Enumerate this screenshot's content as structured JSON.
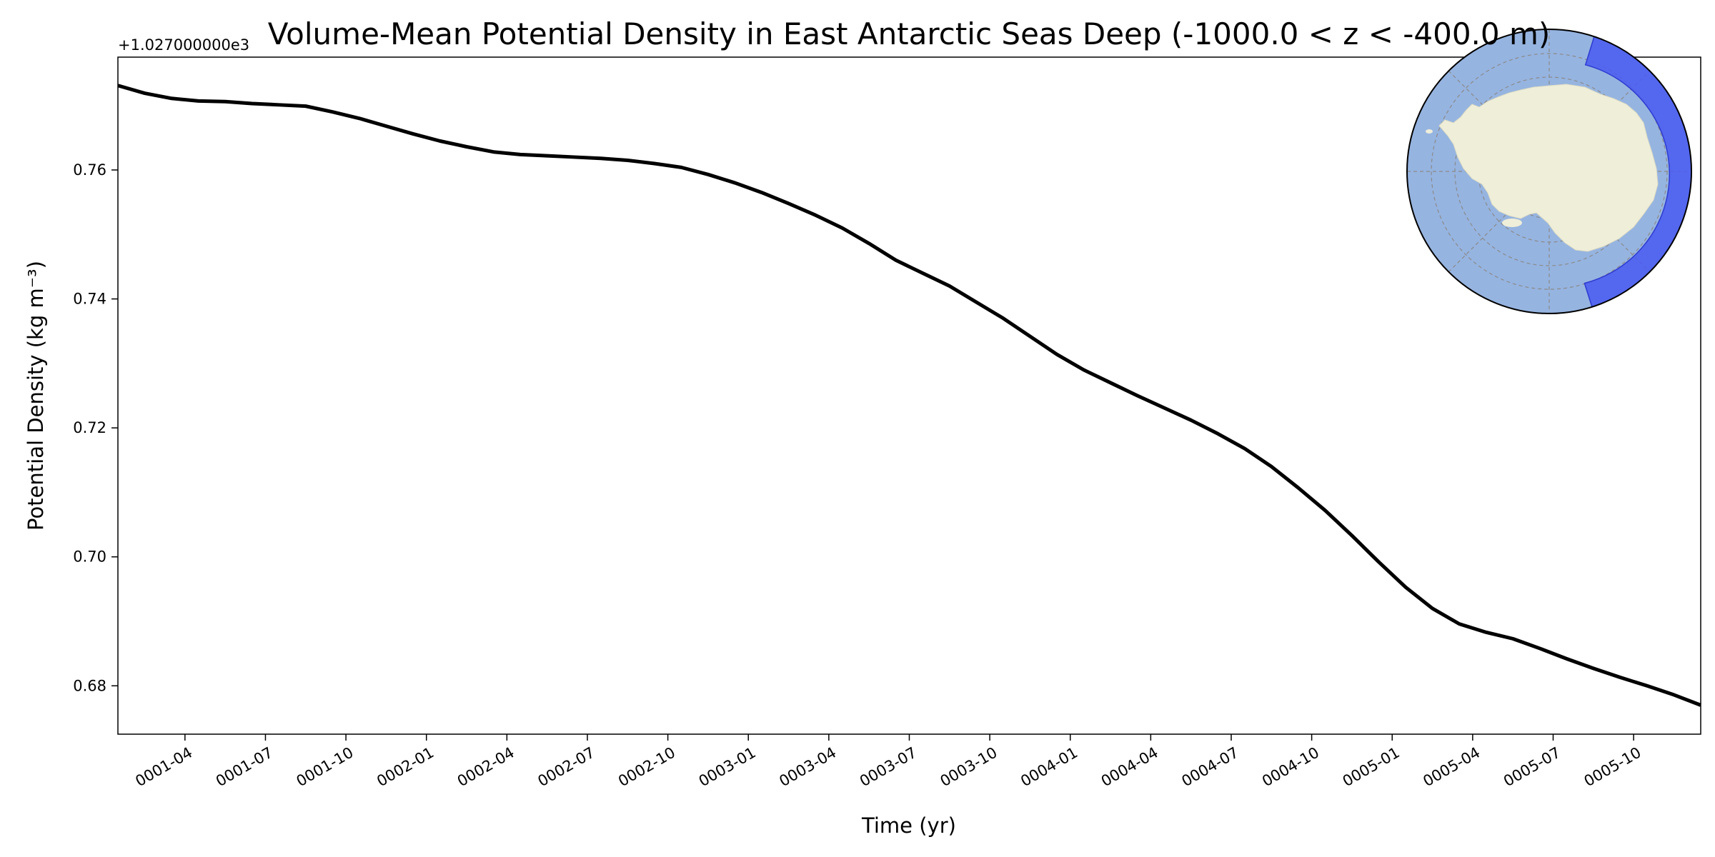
{
  "chart_data": {
    "type": "line",
    "title": "Volume-Mean Potential Density in East Antarctic Seas Deep (-1000.0 < z < -400.0 m)",
    "xlabel": "Time (yr)",
    "ylabel": "Potential Density (kg m⁻³)",
    "offset_text": "+1.027000000e3",
    "xlim": [
      0.0,
      4.9167
    ],
    "ylim": [
      0.6725,
      0.7775
    ],
    "grid": false,
    "legend": "none",
    "line_color": "#000000",
    "x_ticks": [
      {
        "value": 0.2083,
        "label": "0001-04"
      },
      {
        "value": 0.4583,
        "label": "0001-07"
      },
      {
        "value": 0.7083,
        "label": "0001-10"
      },
      {
        "value": 0.9583,
        "label": "0002-01"
      },
      {
        "value": 1.2083,
        "label": "0002-04"
      },
      {
        "value": 1.4583,
        "label": "0002-07"
      },
      {
        "value": 1.7083,
        "label": "0002-10"
      },
      {
        "value": 1.9583,
        "label": "0003-01"
      },
      {
        "value": 2.2083,
        "label": "0003-04"
      },
      {
        "value": 2.4583,
        "label": "0003-07"
      },
      {
        "value": 2.7083,
        "label": "0003-10"
      },
      {
        "value": 2.9583,
        "label": "0004-01"
      },
      {
        "value": 3.2083,
        "label": "0004-04"
      },
      {
        "value": 3.4583,
        "label": "0004-07"
      },
      {
        "value": 3.7083,
        "label": "0004-10"
      },
      {
        "value": 3.9583,
        "label": "0005-01"
      },
      {
        "value": 4.2083,
        "label": "0005-04"
      },
      {
        "value": 4.4583,
        "label": "0005-07"
      },
      {
        "value": 4.7083,
        "label": "0005-10"
      }
    ],
    "y_ticks": [
      {
        "value": 0.68,
        "label": "0.68"
      },
      {
        "value": 0.7,
        "label": "0.70"
      },
      {
        "value": 0.72,
        "label": "0.72"
      },
      {
        "value": 0.74,
        "label": "0.74"
      },
      {
        "value": 0.76,
        "label": "0.76"
      }
    ],
    "series": [
      {
        "name": "East Antarctic Seas Deep",
        "x": [
          0.0,
          0.0833,
          0.1667,
          0.25,
          0.3333,
          0.4167,
          0.5,
          0.5833,
          0.6667,
          0.75,
          0.8333,
          0.9167,
          1.0,
          1.0833,
          1.1667,
          1.25,
          1.3333,
          1.4167,
          1.5,
          1.5833,
          1.6667,
          1.75,
          1.8333,
          1.9167,
          2.0,
          2.0833,
          2.1667,
          2.25,
          2.3333,
          2.4167,
          2.5,
          2.5833,
          2.6667,
          2.75,
          2.8333,
          2.9167,
          3.0,
          3.0833,
          3.1667,
          3.25,
          3.3333,
          3.4167,
          3.5,
          3.5833,
          3.6667,
          3.75,
          3.8333,
          3.9167,
          4.0,
          4.0833,
          4.1667,
          4.25,
          4.3333,
          4.4167,
          4.5,
          4.5833,
          4.6667,
          4.75,
          4.8333,
          4.9167
        ],
        "values": [
          0.7731,
          0.7719,
          0.7711,
          0.7707,
          0.7706,
          0.7703,
          0.7701,
          0.7699,
          0.769,
          0.768,
          0.7668,
          0.7656,
          0.7645,
          0.7636,
          0.7628,
          0.7624,
          0.7622,
          0.762,
          0.7618,
          0.7615,
          0.761,
          0.7604,
          0.7593,
          0.758,
          0.7565,
          0.7548,
          0.753,
          0.751,
          0.7486,
          0.746,
          0.744,
          0.742,
          0.7395,
          0.737,
          0.7342,
          0.7314,
          0.729,
          0.727,
          0.725,
          0.7231,
          0.7212,
          0.7191,
          0.7168,
          0.714,
          0.7107,
          0.7072,
          0.7033,
          0.6992,
          0.6953,
          0.692,
          0.6896,
          0.6883,
          0.6873,
          0.6858,
          0.6842,
          0.6827,
          0.6813,
          0.68,
          0.6786,
          0.677
        ]
      }
    ]
  },
  "inset_map": {
    "name": "Antarctic region map",
    "ocean_color": "#96b4e0",
    "land_color": "#efeed9",
    "region_color": "#4b5cf0"
  }
}
